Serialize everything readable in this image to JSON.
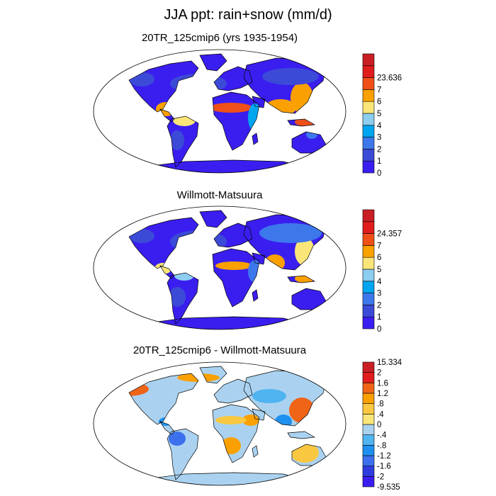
{
  "figure": {
    "title": "JJA ppt: rain+snow (mm/d)"
  },
  "colors": {
    "seq": [
      "#3a1ef0",
      "#3c4ad8",
      "#3c78ec",
      "#00a5f0",
      "#8ccdf0",
      "#fae678",
      "#faa000",
      "#f05018",
      "#e11c1c",
      "#c81e24"
    ],
    "div": [
      "#3a1ef0",
      "#2e3cde",
      "#3c70ec",
      "#1e90f0",
      "#50b4f0",
      "#aad2f0",
      "#fae678",
      "#fac840",
      "#faa000",
      "#f06418",
      "#e11c1c",
      "#c81e24"
    ],
    "land_dry": "#3a1ef0",
    "outline": "#000000",
    "background": "#ffffff"
  },
  "chart_data": [
    {
      "type": "heatmap",
      "title": "20TR_125cmip6 (yrs 1935-1954)",
      "colorbar_labels": [
        "0",
        "1",
        "2",
        "3",
        "4",
        "5",
        "6",
        "7",
        "23.636"
      ],
      "colorbar_levels": [
        1,
        2,
        3,
        4,
        5,
        6,
        7
      ]
    },
    {
      "type": "heatmap",
      "title": "Willmott-Matsuura",
      "colorbar_labels": [
        "0",
        "1",
        "2",
        "3",
        "4",
        "5",
        "6",
        "7",
        "24.357"
      ],
      "colorbar_levels": [
        1,
        2,
        3,
        4,
        5,
        6,
        7
      ]
    },
    {
      "type": "heatmap",
      "title": "20TR_125cmip6 - Willmott-Matsuura",
      "colorbar_labels": [
        "-9.535",
        "-2",
        "-1.6",
        "-1.2",
        "-.8",
        "-.4",
        "0",
        ".4",
        ".8",
        "1.2",
        "1.6",
        "2",
        "15.334"
      ],
      "colorbar_levels": [
        -2,
        -1.6,
        -1.2,
        -0.8,
        -0.4,
        0,
        0.4,
        0.8,
        1.2,
        1.6,
        2
      ]
    }
  ]
}
